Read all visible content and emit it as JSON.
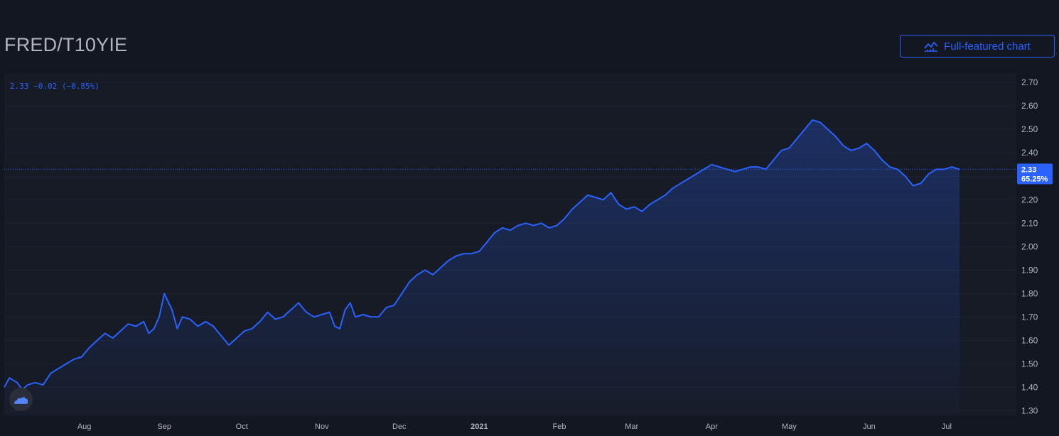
{
  "header": {
    "title": "FRED/T10YIE",
    "button_label": "Full-featured chart",
    "button_icon": "chart-icon"
  },
  "legend": {
    "text": "2.33 −0.02 (−0.85%)"
  },
  "price_tag": {
    "value": "2.33",
    "percent": "65.25%"
  },
  "colors": {
    "background": "#131722",
    "line": "#2962ff",
    "accent": "#2962ff"
  },
  "chart_data": {
    "type": "area",
    "title": "",
    "xlabel": "",
    "ylabel": "",
    "ylim": [
      1.28,
      2.74
    ],
    "y_ticks": [
      "1.30",
      "1.40",
      "1.50",
      "1.60",
      "1.70",
      "1.80",
      "1.90",
      "2.00",
      "2.10",
      "2.20",
      "2.30",
      "2.40",
      "2.50",
      "2.60",
      "2.70"
    ],
    "x_ticks": [
      {
        "label": "Aug",
        "date": "2020-08-01"
      },
      {
        "label": "Sep",
        "date": "2020-09-01"
      },
      {
        "label": "Oct",
        "date": "2020-10-01"
      },
      {
        "label": "Nov",
        "date": "2020-11-01"
      },
      {
        "label": "Dec",
        "date": "2020-12-01"
      },
      {
        "label": "2021",
        "date": "2021-01-01"
      },
      {
        "label": "Feb",
        "date": "2021-02-01"
      },
      {
        "label": "Mar",
        "date": "2021-03-01"
      },
      {
        "label": "Apr",
        "date": "2021-04-01"
      },
      {
        "label": "May",
        "date": "2021-05-01"
      },
      {
        "label": "Jun",
        "date": "2021-06-01"
      },
      {
        "label": "Jul",
        "date": "2021-07-01"
      }
    ],
    "x_range": [
      "2020-07-01",
      "2021-07-28"
    ],
    "last_value": 2.33,
    "series": [
      {
        "values": [
          [
            "2020-07-01",
            1.4
          ],
          [
            "2020-07-03",
            1.44
          ],
          [
            "2020-07-06",
            1.42
          ],
          [
            "2020-07-08",
            1.39
          ],
          [
            "2020-07-10",
            1.41
          ],
          [
            "2020-07-13",
            1.42
          ],
          [
            "2020-07-16",
            1.41
          ],
          [
            "2020-07-19",
            1.46
          ],
          [
            "2020-07-22",
            1.48
          ],
          [
            "2020-07-25",
            1.5
          ],
          [
            "2020-07-28",
            1.52
          ],
          [
            "2020-07-31",
            1.53
          ],
          [
            "2020-08-03",
            1.57
          ],
          [
            "2020-08-06",
            1.6
          ],
          [
            "2020-08-09",
            1.63
          ],
          [
            "2020-08-12",
            1.61
          ],
          [
            "2020-08-15",
            1.64
          ],
          [
            "2020-08-18",
            1.67
          ],
          [
            "2020-08-21",
            1.66
          ],
          [
            "2020-08-24",
            1.68
          ],
          [
            "2020-08-26",
            1.63
          ],
          [
            "2020-08-28",
            1.65
          ],
          [
            "2020-08-30",
            1.7
          ],
          [
            "2020-09-01",
            1.8
          ],
          [
            "2020-09-04",
            1.73
          ],
          [
            "2020-09-06",
            1.65
          ],
          [
            "2020-09-08",
            1.7
          ],
          [
            "2020-09-11",
            1.69
          ],
          [
            "2020-09-14",
            1.66
          ],
          [
            "2020-09-17",
            1.68
          ],
          [
            "2020-09-20",
            1.66
          ],
          [
            "2020-09-23",
            1.62
          ],
          [
            "2020-09-26",
            1.58
          ],
          [
            "2020-09-29",
            1.61
          ],
          [
            "2020-10-02",
            1.64
          ],
          [
            "2020-10-05",
            1.65
          ],
          [
            "2020-10-08",
            1.68
          ],
          [
            "2020-10-11",
            1.72
          ],
          [
            "2020-10-14",
            1.69
          ],
          [
            "2020-10-17",
            1.7
          ],
          [
            "2020-10-20",
            1.73
          ],
          [
            "2020-10-23",
            1.76
          ],
          [
            "2020-10-26",
            1.72
          ],
          [
            "2020-10-29",
            1.7
          ],
          [
            "2020-11-01",
            1.71
          ],
          [
            "2020-11-04",
            1.72
          ],
          [
            "2020-11-06",
            1.66
          ],
          [
            "2020-11-08",
            1.65
          ],
          [
            "2020-11-10",
            1.73
          ],
          [
            "2020-11-12",
            1.76
          ],
          [
            "2020-11-14",
            1.7
          ],
          [
            "2020-11-17",
            1.71
          ],
          [
            "2020-11-20",
            1.7
          ],
          [
            "2020-11-23",
            1.7
          ],
          [
            "2020-11-26",
            1.74
          ],
          [
            "2020-11-29",
            1.75
          ],
          [
            "2020-12-02",
            1.8
          ],
          [
            "2020-12-05",
            1.85
          ],
          [
            "2020-12-08",
            1.88
          ],
          [
            "2020-12-11",
            1.9
          ],
          [
            "2020-12-14",
            1.88
          ],
          [
            "2020-12-17",
            1.91
          ],
          [
            "2020-12-20",
            1.94
          ],
          [
            "2020-12-23",
            1.96
          ],
          [
            "2020-12-26",
            1.97
          ],
          [
            "2020-12-29",
            1.97
          ],
          [
            "2021-01-01",
            1.98
          ],
          [
            "2021-01-04",
            2.02
          ],
          [
            "2021-01-07",
            2.06
          ],
          [
            "2021-01-10",
            2.08
          ],
          [
            "2021-01-13",
            2.07
          ],
          [
            "2021-01-16",
            2.09
          ],
          [
            "2021-01-19",
            2.1
          ],
          [
            "2021-01-22",
            2.09
          ],
          [
            "2021-01-25",
            2.1
          ],
          [
            "2021-01-28",
            2.08
          ],
          [
            "2021-01-31",
            2.09
          ],
          [
            "2021-02-03",
            2.12
          ],
          [
            "2021-02-06",
            2.16
          ],
          [
            "2021-02-09",
            2.19
          ],
          [
            "2021-02-12",
            2.22
          ],
          [
            "2021-02-15",
            2.21
          ],
          [
            "2021-02-18",
            2.2
          ],
          [
            "2021-02-21",
            2.23
          ],
          [
            "2021-02-24",
            2.18
          ],
          [
            "2021-02-27",
            2.16
          ],
          [
            "2021-03-02",
            2.17
          ],
          [
            "2021-03-05",
            2.15
          ],
          [
            "2021-03-08",
            2.18
          ],
          [
            "2021-03-11",
            2.2
          ],
          [
            "2021-03-14",
            2.22
          ],
          [
            "2021-03-17",
            2.25
          ],
          [
            "2021-03-20",
            2.27
          ],
          [
            "2021-03-23",
            2.29
          ],
          [
            "2021-03-26",
            2.31
          ],
          [
            "2021-03-29",
            2.33
          ],
          [
            "2021-04-01",
            2.35
          ],
          [
            "2021-04-04",
            2.34
          ],
          [
            "2021-04-07",
            2.33
          ],
          [
            "2021-04-10",
            2.32
          ],
          [
            "2021-04-13",
            2.33
          ],
          [
            "2021-04-16",
            2.34
          ],
          [
            "2021-04-19",
            2.34
          ],
          [
            "2021-04-22",
            2.33
          ],
          [
            "2021-04-25",
            2.37
          ],
          [
            "2021-04-28",
            2.41
          ],
          [
            "2021-05-01",
            2.42
          ],
          [
            "2021-05-04",
            2.46
          ],
          [
            "2021-05-07",
            2.5
          ],
          [
            "2021-05-10",
            2.54
          ],
          [
            "2021-05-13",
            2.53
          ],
          [
            "2021-05-16",
            2.5
          ],
          [
            "2021-05-19",
            2.47
          ],
          [
            "2021-05-22",
            2.43
          ],
          [
            "2021-05-25",
            2.41
          ],
          [
            "2021-05-28",
            2.42
          ],
          [
            "2021-05-31",
            2.44
          ],
          [
            "2021-06-03",
            2.41
          ],
          [
            "2021-06-06",
            2.37
          ],
          [
            "2021-06-09",
            2.34
          ],
          [
            "2021-06-12",
            2.33
          ],
          [
            "2021-06-15",
            2.3
          ],
          [
            "2021-06-18",
            2.26
          ],
          [
            "2021-06-21",
            2.27
          ],
          [
            "2021-06-24",
            2.31
          ],
          [
            "2021-06-27",
            2.33
          ],
          [
            "2021-06-30",
            2.33
          ],
          [
            "2021-07-03",
            2.34
          ],
          [
            "2021-07-06",
            2.33
          ]
        ]
      }
    ]
  }
}
